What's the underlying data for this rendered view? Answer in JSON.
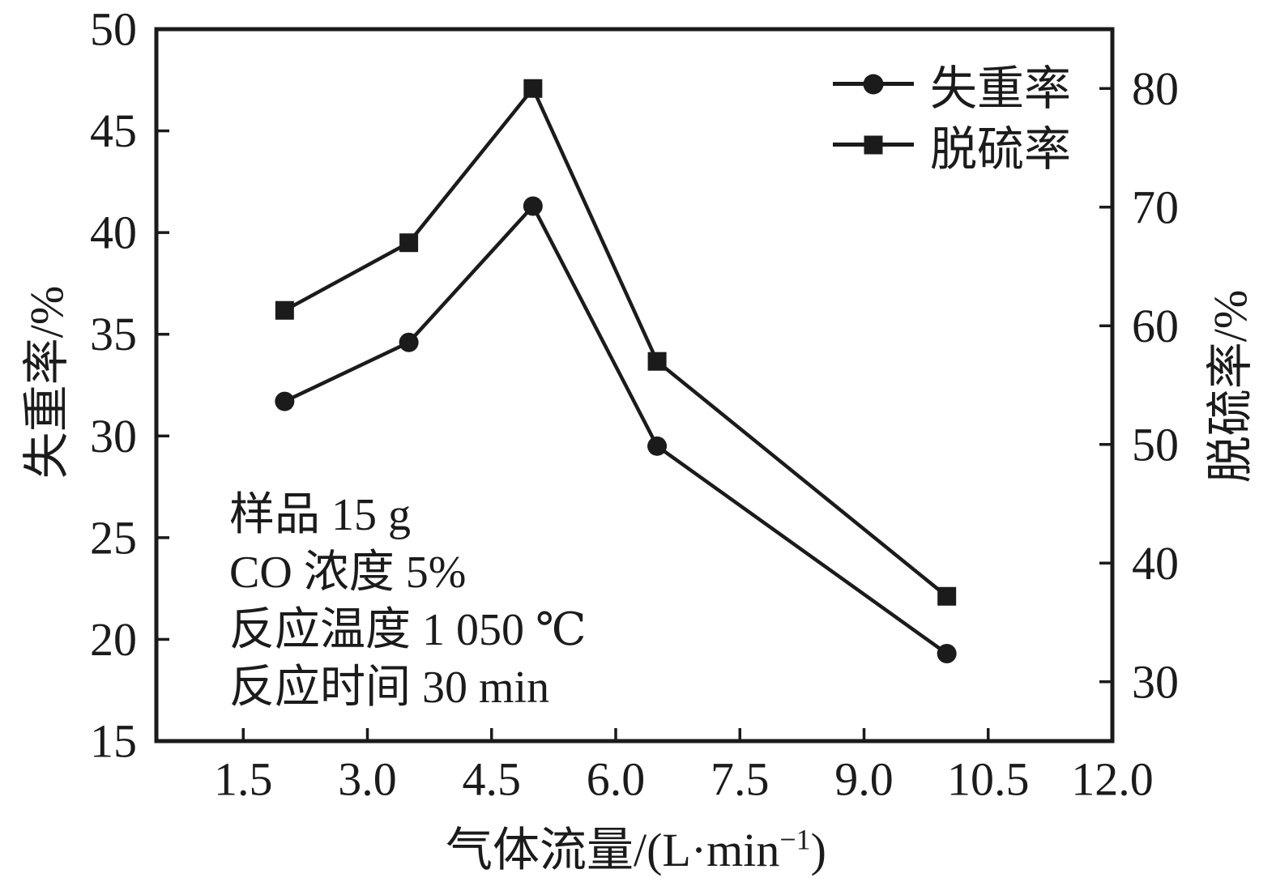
{
  "figure": {
    "background": "#ffffff",
    "ink_color": "#1b1b1b"
  },
  "chart_data": {
    "type": "line",
    "x": [
      2.0,
      3.5,
      5.0,
      6.5,
      10.0
    ],
    "series": [
      {
        "name": "失重率",
        "axis": "left",
        "marker": "circle",
        "values": [
          31.7,
          34.6,
          41.3,
          29.5,
          19.3
        ]
      },
      {
        "name": "脱硫率",
        "axis": "right",
        "marker": "square",
        "values": [
          61.3,
          67.0,
          80.0,
          57.0,
          37.2
        ]
      }
    ],
    "xlabel": "气体流量/(L·min⁻¹)",
    "xlabel_parts": {
      "main": "气体流量/(L·min",
      "sup": "−1",
      "close": ")"
    },
    "ylabel_left": "失重率/%",
    "ylabel_right": "脱硫率/%",
    "x_ticks": [
      1.5,
      3.0,
      4.5,
      6.0,
      7.5,
      9.0,
      10.5,
      12.0
    ],
    "x_tick_labels": [
      "1.5",
      "3.0",
      "4.5",
      "6.0",
      "7.5",
      "9.0",
      "10.5",
      "12.0"
    ],
    "y_left_ticks": [
      15,
      20,
      25,
      30,
      35,
      40,
      45,
      50
    ],
    "y_left_tick_labels": [
      "15",
      "20",
      "25",
      "30",
      "35",
      "40",
      "45",
      "50"
    ],
    "y_right_ticks": [
      30,
      40,
      50,
      60,
      70,
      80
    ],
    "y_right_tick_labels": [
      "30",
      "40",
      "50",
      "60",
      "70",
      "80"
    ],
    "x_range": [
      0.45,
      12.0
    ],
    "y_left_range": [
      15,
      50
    ],
    "y_right_range": [
      25,
      85
    ],
    "grid": false,
    "legend_position": "top-right-inside",
    "legend": [
      {
        "label": "失重率",
        "marker": "circle"
      },
      {
        "label": "脱硫率",
        "marker": "square"
      }
    ],
    "annotations": [
      "样品 15 g",
      "CO 浓度 5%",
      "反应温度 1 050 ℃",
      "反应时间 30 min"
    ]
  }
}
